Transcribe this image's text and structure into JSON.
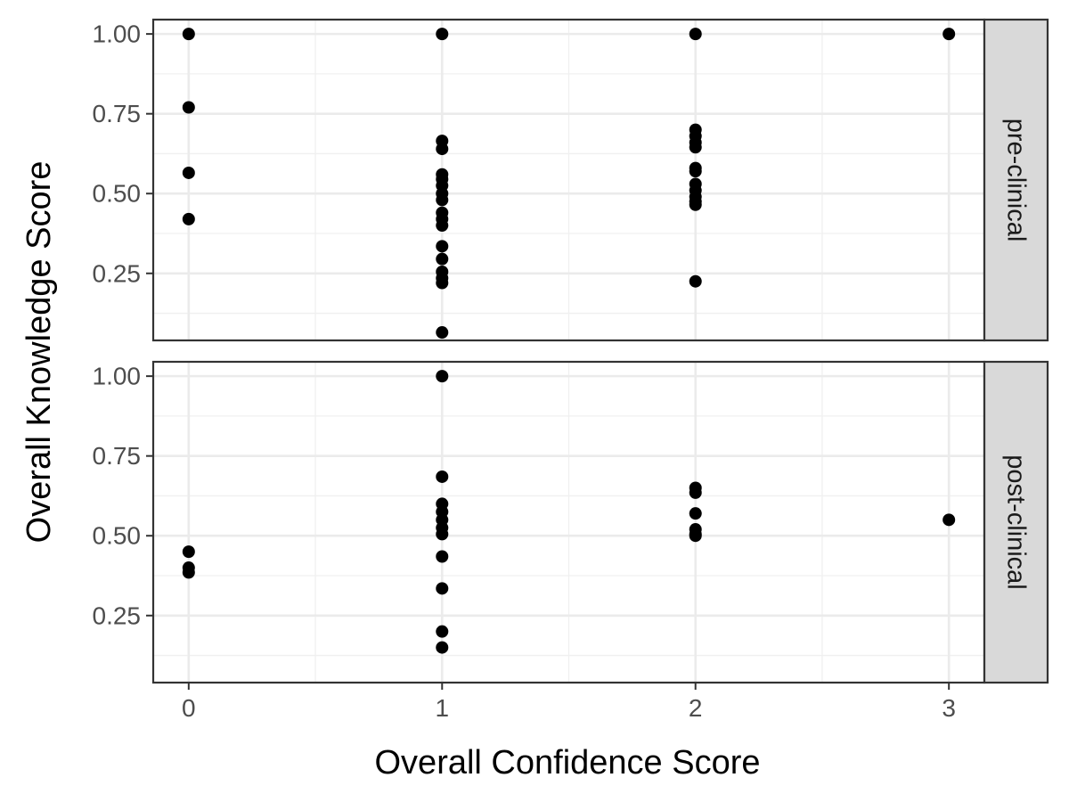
{
  "chart_data": {
    "type": "scatter",
    "xlabel": "Overall Confidence Score",
    "ylabel": "Overall Knowledge Score",
    "xlim": [
      -0.14,
      3.14
    ],
    "ylim": [
      0.04,
      1.045
    ],
    "x_ticks": [
      0,
      1,
      2,
      3
    ],
    "x_tick_labels": [
      "0",
      "1",
      "2",
      "3"
    ],
    "y_ticks": [
      0.25,
      0.5,
      0.75,
      1.0
    ],
    "y_tick_labels": [
      "0.25",
      "0.50",
      "0.75",
      "1.00"
    ],
    "grid": true,
    "point_color": "#000000",
    "panels": [
      {
        "facet": "pre-clinical",
        "points": [
          [
            0,
            1.0
          ],
          [
            0,
            0.77
          ],
          [
            0,
            0.565
          ],
          [
            0,
            0.42
          ],
          [
            1,
            1.0
          ],
          [
            1,
            0.665
          ],
          [
            1,
            0.64
          ],
          [
            1,
            0.56
          ],
          [
            1,
            0.545
          ],
          [
            1,
            0.525
          ],
          [
            1,
            0.5
          ],
          [
            1,
            0.48
          ],
          [
            1,
            0.44
          ],
          [
            1,
            0.42
          ],
          [
            1,
            0.4
          ],
          [
            1,
            0.335
          ],
          [
            1,
            0.295
          ],
          [
            1,
            0.255
          ],
          [
            1,
            0.235
          ],
          [
            1,
            0.22
          ],
          [
            1,
            0.065
          ],
          [
            2,
            1.0
          ],
          [
            2,
            0.7
          ],
          [
            2,
            0.68
          ],
          [
            2,
            0.66
          ],
          [
            2,
            0.645
          ],
          [
            2,
            0.58
          ],
          [
            2,
            0.57
          ],
          [
            2,
            0.53
          ],
          [
            2,
            0.51
          ],
          [
            2,
            0.49
          ],
          [
            2,
            0.475
          ],
          [
            2,
            0.465
          ],
          [
            2,
            0.225
          ],
          [
            3,
            1.0
          ]
        ]
      },
      {
        "facet": "post-clinical",
        "points": [
          [
            0,
            0.45
          ],
          [
            0,
            0.4
          ],
          [
            0,
            0.385
          ],
          [
            1,
            1.0
          ],
          [
            1,
            0.685
          ],
          [
            1,
            0.6
          ],
          [
            1,
            0.575
          ],
          [
            1,
            0.55
          ],
          [
            1,
            0.525
          ],
          [
            1,
            0.505
          ],
          [
            1,
            0.435
          ],
          [
            1,
            0.335
          ],
          [
            1,
            0.2
          ],
          [
            1,
            0.15
          ],
          [
            2,
            0.65
          ],
          [
            2,
            0.635
          ],
          [
            2,
            0.57
          ],
          [
            2,
            0.52
          ],
          [
            2,
            0.505
          ],
          [
            2,
            0.5
          ],
          [
            3,
            0.55
          ]
        ]
      }
    ]
  }
}
